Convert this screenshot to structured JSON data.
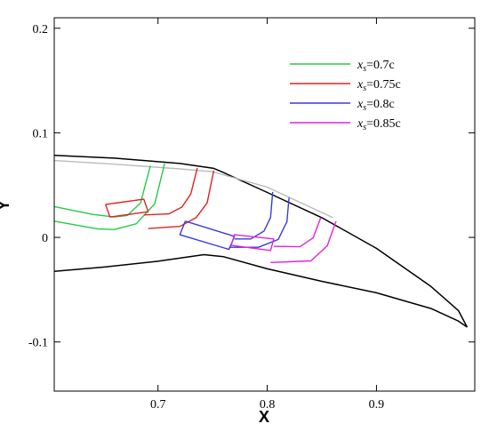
{
  "chart_data": {
    "type": "line",
    "xlabel": "X",
    "ylabel": "Y",
    "xlim": [
      0.605,
      0.99
    ],
    "ylim": [
      -0.147,
      0.21
    ],
    "x_ticks": [
      0.7,
      0.8,
      0.9
    ],
    "x_tick_labels": [
      "0.7",
      "0.8",
      "0.9"
    ],
    "y_ticks": [
      0.2,
      0.1,
      0,
      -0.1
    ],
    "y_tick_labels": [
      "0.2",
      "0.1",
      "0",
      "-0.1"
    ],
    "grid": false,
    "legend_position": "top-right",
    "legend_entries": [
      {
        "name": "0.7c",
        "color": "#22cc44"
      },
      {
        "name": "0.75c",
        "color": "#e22222"
      },
      {
        "name": "0.8c",
        "color": "#3a3add"
      },
      {
        "name": "0.85c",
        "color": "#e022e0"
      }
    ],
    "legend_prefix_main": "x",
    "legend_prefix_sub": "s",
    "legend_prefix_eq": "=",
    "series": [
      {
        "role": "airfoil_upper",
        "color": "#000000",
        "x": [
          0.605,
          0.66,
          0.72,
          0.751,
          0.76,
          0.8,
          0.85,
          0.9,
          0.95,
          0.975,
          0.983
        ],
        "y": [
          0.0785,
          0.0758,
          0.0707,
          0.066,
          0.062,
          0.043,
          0.0188,
          -0.0105,
          -0.047,
          -0.07,
          -0.0858
        ]
      },
      {
        "role": "airfoil_lower",
        "color": "#000000",
        "x": [
          0.605,
          0.65,
          0.7,
          0.742,
          0.76,
          0.8,
          0.85,
          0.9,
          0.95,
          0.975,
          0.983
        ],
        "y": [
          -0.0325,
          -0.0284,
          -0.0228,
          -0.0165,
          -0.0185,
          -0.03,
          -0.042,
          -0.053,
          -0.068,
          -0.08,
          -0.0858
        ]
      },
      {
        "role": "inner_contour",
        "color": "#bbbbbb",
        "x": [
          0.605,
          0.66,
          0.72,
          0.75,
          0.8,
          0.86
        ],
        "y": [
          0.0735,
          0.07,
          0.0655,
          0.0628,
          0.048,
          0.019
        ]
      },
      {
        "role": "slot_0.7c_a",
        "color": "#22cc44",
        "x": [
          0.605,
          0.64,
          0.66,
          0.672,
          0.684,
          0.693
        ],
        "y": [
          0.0295,
          0.022,
          0.0195,
          0.021,
          0.033,
          0.0685
        ]
      },
      {
        "role": "slot_0.7c_b",
        "color": "#22cc44",
        "x": [
          0.605,
          0.645,
          0.66,
          0.68,
          0.697,
          0.706
        ],
        "y": [
          0.0155,
          0.008,
          0.0075,
          0.013,
          0.032,
          0.0705
        ]
      },
      {
        "role": "slot_0.75c_box",
        "color": "#e22222",
        "x": [
          0.652,
          0.656,
          0.691,
          0.687,
          0.652
        ],
        "y": [
          0.0315,
          0.0195,
          0.0245,
          0.0365,
          0.0315
        ]
      },
      {
        "role": "slot_0.75c_a",
        "color": "#e22222",
        "x": [
          0.687,
          0.71,
          0.722,
          0.73,
          0.736
        ],
        "y": [
          0.0215,
          0.0225,
          0.029,
          0.0415,
          0.0663
        ]
      },
      {
        "role": "slot_0.75c_b",
        "color": "#e22222",
        "x": [
          0.691,
          0.72,
          0.735,
          0.745,
          0.751
        ],
        "y": [
          0.0085,
          0.0105,
          0.019,
          0.033,
          0.0638
        ]
      },
      {
        "role": "slot_0.8c_box",
        "color": "#3a3add",
        "x": [
          0.725,
          0.72,
          0.765,
          0.77,
          0.725
        ],
        "y": [
          0.0155,
          0.0025,
          -0.0115,
          0.001,
          0.0155
        ]
      },
      {
        "role": "slot_0.8c_a",
        "color": "#3a3add",
        "x": [
          0.77,
          0.785,
          0.797,
          0.803,
          0.805
        ],
        "y": [
          -0.0015,
          -0.0015,
          0.006,
          0.019,
          0.0435
        ]
      },
      {
        "role": "slot_0.8c_b",
        "color": "#3a3add",
        "x": [
          0.765,
          0.792,
          0.81,
          0.818,
          0.82
        ],
        "y": [
          -0.0095,
          -0.0095,
          -0.002,
          0.015,
          0.038
        ]
      },
      {
        "role": "slot_0.85c_box",
        "color": "#e022e0",
        "x": [
          0.767,
          0.77,
          0.806,
          0.803,
          0.767
        ],
        "y": [
          -0.0075,
          0.0025,
          -0.0015,
          -0.0125,
          -0.0075
        ]
      },
      {
        "role": "slot_0.85c_a",
        "color": "#e022e0",
        "x": [
          0.806,
          0.83,
          0.842,
          0.849
        ],
        "y": [
          -0.0085,
          -0.009,
          -0.0005,
          0.019
        ]
      },
      {
        "role": "slot_0.85c_b",
        "color": "#e022e0",
        "x": [
          0.803,
          0.84,
          0.855,
          0.863
        ],
        "y": [
          -0.024,
          -0.0225,
          -0.008,
          0.0155
        ]
      }
    ]
  }
}
